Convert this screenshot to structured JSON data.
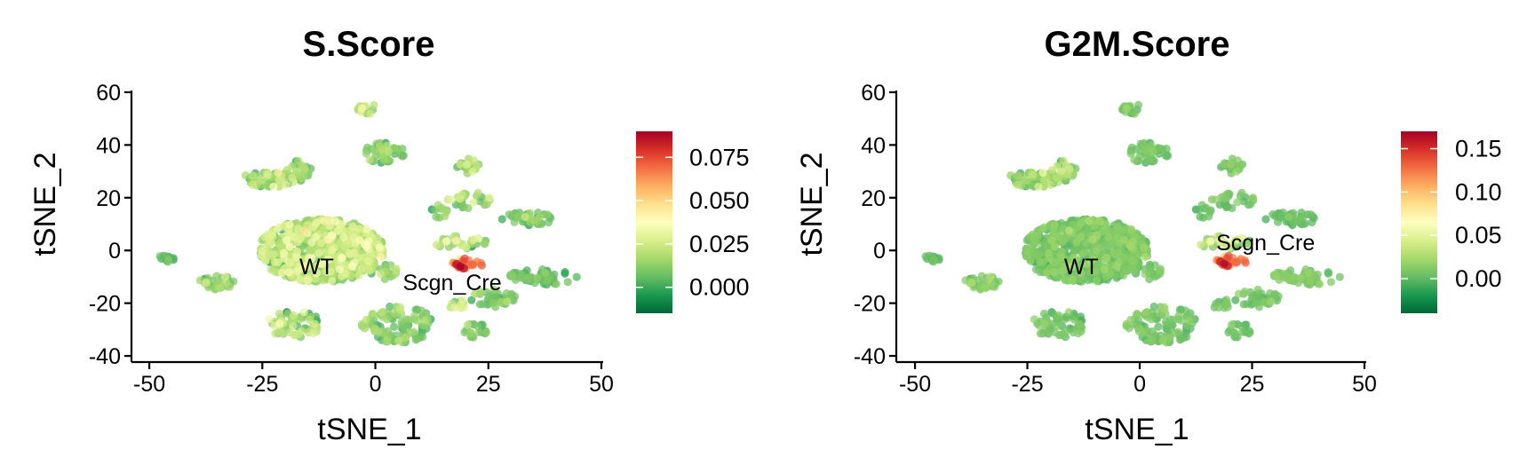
{
  "chart_data": [
    {
      "type": "scatter",
      "title": "S.Score",
      "xlabel": "tSNE_1",
      "ylabel": "tSNE_2",
      "xlim": [
        -51,
        50
      ],
      "ylim": [
        -42,
        62
      ],
      "xticks": [
        -50,
        -25,
        0,
        25,
        50
      ],
      "xtick_labels": [
        "-50",
        "-25",
        "0",
        "25",
        "50"
      ],
      "yticks": [
        -40,
        -20,
        0,
        20,
        40,
        60
      ],
      "ytick_labels": [
        "-40",
        "-20",
        "0",
        "20",
        "40",
        "60"
      ],
      "color_scale": {
        "name": "RdYlGn (reversed)",
        "min": -0.015,
        "max": 0.09,
        "ticks": [
          0.0,
          0.025,
          0.05,
          0.075
        ],
        "tick_labels": [
          "0.000",
          "0.025",
          "0.050",
          "0.075"
        ],
        "colors": [
          "#006837",
          "#1a9850",
          "#66bd63",
          "#a6d96a",
          "#d9ef8b",
          "#ffffbf",
          "#fee08b",
          "#fdae61",
          "#f46d43",
          "#d73027",
          "#a50026"
        ]
      },
      "legend_position": "right",
      "cluster_labels": [
        {
          "text": "WT",
          "x": -13,
          "y": -9
        },
        {
          "text": "Scgn_Cre",
          "x": 17,
          "y": -15
        }
      ],
      "clusters": [
        {
          "cx": -12,
          "cy": 0,
          "rx": 14,
          "ry": 12,
          "n": 650,
          "base": 0.018,
          "spread": 0.014
        },
        {
          "cx": -23,
          "cy": 27,
          "rx": 7,
          "ry": 3,
          "n": 55,
          "base": 0.014,
          "spread": 0.013
        },
        {
          "cx": -17,
          "cy": 30,
          "rx": 3,
          "ry": 4,
          "n": 25,
          "base": 0.012,
          "spread": 0.012
        },
        {
          "cx": -2,
          "cy": 54,
          "rx": 2,
          "ry": 2.5,
          "n": 14,
          "base": 0.018,
          "spread": 0.012
        },
        {
          "cx": 2,
          "cy": 37,
          "rx": 4.5,
          "ry": 4,
          "n": 45,
          "base": 0.01,
          "spread": 0.01
        },
        {
          "cx": 20,
          "cy": 32,
          "rx": 3,
          "ry": 3,
          "n": 22,
          "base": 0.012,
          "spread": 0.012
        },
        {
          "cx": 21,
          "cy": 19,
          "rx": 5,
          "ry": 3,
          "n": 25,
          "base": 0.014,
          "spread": 0.014
        },
        {
          "cx": 34,
          "cy": 12,
          "rx": 6,
          "ry": 2.5,
          "n": 38,
          "base": 0.008,
          "spread": 0.009
        },
        {
          "cx": 14,
          "cy": 15,
          "rx": 2,
          "ry": 3,
          "n": 10,
          "base": 0.01,
          "spread": 0.009
        },
        {
          "cx": 19,
          "cy": 3,
          "rx": 6,
          "ry": 2.5,
          "n": 30,
          "base": 0.016,
          "spread": 0.014
        },
        {
          "cx": 20,
          "cy": -5,
          "rx": 4,
          "ry": 2,
          "n": 28,
          "base": 0.07,
          "spread": 0.015
        },
        {
          "cx": 37,
          "cy": -10,
          "rx": 8,
          "ry": 3,
          "n": 50,
          "base": 0.005,
          "spread": 0.008
        },
        {
          "cx": 26,
          "cy": -18,
          "rx": 5,
          "ry": 3.5,
          "n": 38,
          "base": 0.008,
          "spread": 0.008
        },
        {
          "cx": 5,
          "cy": -28,
          "rx": 8,
          "ry": 7,
          "n": 95,
          "base": 0.009,
          "spread": 0.009
        },
        {
          "cx": 22,
          "cy": -30,
          "rx": 3,
          "ry": 3,
          "n": 18,
          "base": 0.008,
          "spread": 0.008
        },
        {
          "cx": -18,
          "cy": -28,
          "rx": 6,
          "ry": 5,
          "n": 55,
          "base": 0.016,
          "spread": 0.014
        },
        {
          "cx": -35,
          "cy": -12,
          "rx": 4,
          "ry": 3,
          "n": 30,
          "base": 0.012,
          "spread": 0.01
        },
        {
          "cx": -46,
          "cy": -3,
          "rx": 2,
          "ry": 1.3,
          "n": 12,
          "base": 0.004,
          "spread": 0.006
        },
        {
          "cx": 2,
          "cy": -8,
          "rx": 3,
          "ry": 3,
          "n": 20,
          "base": 0.012,
          "spread": 0.01
        },
        {
          "cx": 18,
          "cy": -20,
          "rx": 2.5,
          "ry": 2,
          "n": 12,
          "base": 0.02,
          "spread": 0.014
        }
      ]
    },
    {
      "type": "scatter",
      "title": "G2M.Score",
      "xlabel": "tSNE_1",
      "ylabel": "tSNE_2",
      "xlim": [
        -51,
        50
      ],
      "ylim": [
        -42,
        62
      ],
      "xticks": [
        -50,
        -25,
        0,
        25,
        50
      ],
      "xtick_labels": [
        "-50",
        "-25",
        "0",
        "25",
        "50"
      ],
      "yticks": [
        -40,
        -20,
        0,
        20,
        40,
        60
      ],
      "ytick_labels": [
        "-40",
        "-20",
        "0",
        "20",
        "40",
        "60"
      ],
      "color_scale": {
        "name": "RdYlGn (reversed)",
        "min": -0.04,
        "max": 0.17,
        "ticks": [
          0.0,
          0.05,
          0.1,
          0.15
        ],
        "tick_labels": [
          "0.00",
          "0.05",
          "0.10",
          "0.15"
        ],
        "colors": [
          "#006837",
          "#1a9850",
          "#66bd63",
          "#a6d96a",
          "#d9ef8b",
          "#ffffbf",
          "#fee08b",
          "#fdae61",
          "#f46d43",
          "#d73027",
          "#a50026"
        ]
      },
      "legend_position": "right",
      "cluster_labels": [
        {
          "text": "WT",
          "x": -13,
          "y": -9
        },
        {
          "text": "Scgn_Cre",
          "x": 28,
          "y": 0
        }
      ],
      "clusters": [
        {
          "cx": -12,
          "cy": 0,
          "rx": 14,
          "ry": 12,
          "n": 650,
          "base": 0.005,
          "spread": 0.012
        },
        {
          "cx": -23,
          "cy": 27,
          "rx": 7,
          "ry": 3,
          "n": 55,
          "base": 0.012,
          "spread": 0.02
        },
        {
          "cx": -17,
          "cy": 30,
          "rx": 3,
          "ry": 4,
          "n": 25,
          "base": 0.02,
          "spread": 0.03
        },
        {
          "cx": -2,
          "cy": 54,
          "rx": 2,
          "ry": 2.5,
          "n": 14,
          "base": 0.004,
          "spread": 0.01
        },
        {
          "cx": 2,
          "cy": 37,
          "rx": 4.5,
          "ry": 4,
          "n": 45,
          "base": 0.004,
          "spread": 0.01
        },
        {
          "cx": 20,
          "cy": 32,
          "rx": 3,
          "ry": 3,
          "n": 22,
          "base": 0.004,
          "spread": 0.01
        },
        {
          "cx": 21,
          "cy": 19,
          "rx": 5,
          "ry": 3,
          "n": 25,
          "base": 0.004,
          "spread": 0.01
        },
        {
          "cx": 34,
          "cy": 12,
          "rx": 6,
          "ry": 2.5,
          "n": 38,
          "base": 0.0,
          "spread": 0.008
        },
        {
          "cx": 14,
          "cy": 15,
          "rx": 2,
          "ry": 3,
          "n": 10,
          "base": 0.0,
          "spread": 0.008
        },
        {
          "cx": 19,
          "cy": 3,
          "rx": 6,
          "ry": 2.5,
          "n": 30,
          "base": 0.02,
          "spread": 0.03
        },
        {
          "cx": 20,
          "cy": -4,
          "rx": 4,
          "ry": 2,
          "n": 28,
          "base": 0.13,
          "spread": 0.025
        },
        {
          "cx": 37,
          "cy": -10,
          "rx": 8,
          "ry": 3,
          "n": 50,
          "base": 0.008,
          "spread": 0.01
        },
        {
          "cx": 26,
          "cy": -18,
          "rx": 5,
          "ry": 3.5,
          "n": 38,
          "base": 0.004,
          "spread": 0.01
        },
        {
          "cx": 5,
          "cy": -28,
          "rx": 8,
          "ry": 7,
          "n": 95,
          "base": 0.004,
          "spread": 0.01
        },
        {
          "cx": 22,
          "cy": -30,
          "rx": 3,
          "ry": 3,
          "n": 18,
          "base": 0.002,
          "spread": 0.008
        },
        {
          "cx": -18,
          "cy": -28,
          "rx": 6,
          "ry": 5,
          "n": 55,
          "base": 0.004,
          "spread": 0.01
        },
        {
          "cx": -35,
          "cy": -12,
          "rx": 4,
          "ry": 3,
          "n": 30,
          "base": 0.01,
          "spread": 0.012
        },
        {
          "cx": -46,
          "cy": -3,
          "rx": 2,
          "ry": 1.3,
          "n": 12,
          "base": 0.0,
          "spread": 0.006
        },
        {
          "cx": 2,
          "cy": -8,
          "rx": 3,
          "ry": 3,
          "n": 20,
          "base": 0.004,
          "spread": 0.01
        },
        {
          "cx": 18,
          "cy": -20,
          "rx": 2.5,
          "ry": 2,
          "n": 12,
          "base": 0.004,
          "spread": 0.01
        }
      ]
    }
  ]
}
